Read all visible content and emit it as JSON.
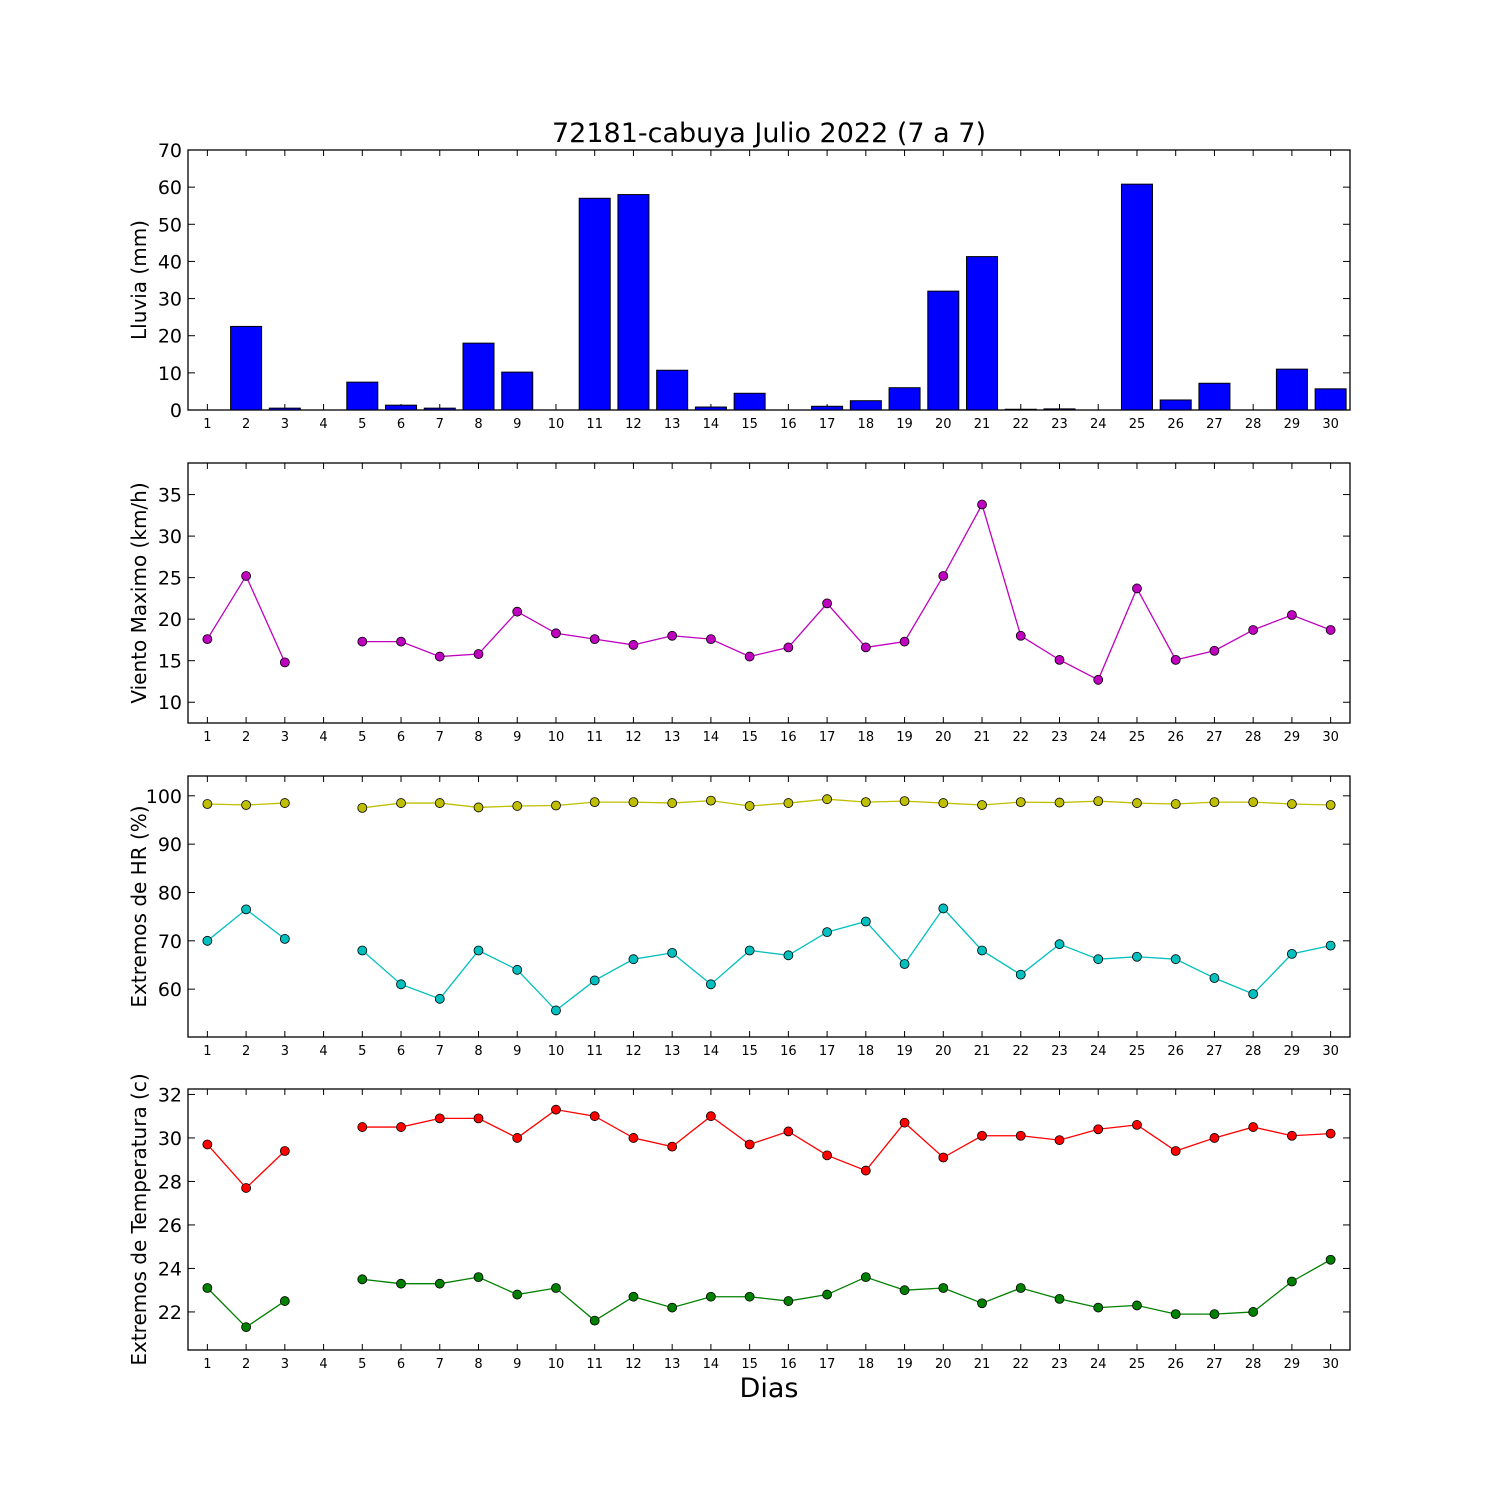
{
  "figure": {
    "title": "72181-cabuya Julio 2022  (7 a 7)",
    "xlabel": "Dias"
  },
  "colors": {
    "rain": "#0000ff",
    "wind": "#bf00bf",
    "hr_max": "#bfbf00",
    "hr_min": "#00bfbf",
    "temp_max": "#ff0000",
    "temp_min": "#008000"
  },
  "chart_data": [
    {
      "type": "bar",
      "ylabel": "Lluvia (mm)",
      "ylim": [
        0,
        70
      ],
      "yticks": [
        0,
        10,
        20,
        30,
        40,
        50,
        60,
        70
      ],
      "categories": [
        "1",
        "2",
        "3",
        "4",
        "5",
        "6",
        "7",
        "8",
        "9",
        "10",
        "11",
        "12",
        "13",
        "14",
        "15",
        "16",
        "17",
        "18",
        "19",
        "20",
        "21",
        "22",
        "23",
        "24",
        "25",
        "26",
        "27",
        "28",
        "29",
        "30"
      ],
      "series": [
        {
          "values": [
            0,
            22.5,
            0.5,
            null,
            7.5,
            1.3,
            0.5,
            18,
            10.2,
            0,
            57,
            58,
            10.7,
            0.8,
            4.5,
            0,
            1,
            2.5,
            6,
            32,
            41.3,
            0.2,
            0.3,
            0,
            60.8,
            2.7,
            7.2,
            0,
            11,
            5.7
          ]
        }
      ]
    },
    {
      "type": "line",
      "ylabel": "Viento Maximo (km/h)",
      "ylim": [
        7.5,
        38.8
      ],
      "yticks": [
        10,
        15,
        20,
        25,
        30,
        35
      ],
      "categories": [
        "1",
        "2",
        "3",
        "4",
        "5",
        "6",
        "7",
        "8",
        "9",
        "10",
        "11",
        "12",
        "13",
        "14",
        "15",
        "16",
        "17",
        "18",
        "19",
        "20",
        "21",
        "22",
        "23",
        "24",
        "25",
        "26",
        "27",
        "28",
        "29",
        "30"
      ],
      "series": [
        {
          "values": [
            17.6,
            25.2,
            14.8,
            null,
            17.3,
            17.3,
            15.5,
            15.8,
            20.9,
            18.3,
            17.6,
            16.9,
            18,
            17.6,
            15.5,
            16.6,
            21.9,
            16.6,
            17.3,
            25.2,
            33.8,
            18,
            15.1,
            12.7,
            23.7,
            15.1,
            16.2,
            18.7,
            20.5,
            18.7
          ]
        }
      ]
    },
    {
      "type": "line",
      "ylabel": "Extremos de HR (%)",
      "ylim": [
        50.1,
        104.1
      ],
      "yticks": [
        60,
        70,
        80,
        90,
        100
      ],
      "categories": [
        "1",
        "2",
        "3",
        "4",
        "5",
        "6",
        "7",
        "8",
        "9",
        "10",
        "11",
        "12",
        "13",
        "14",
        "15",
        "16",
        "17",
        "18",
        "19",
        "20",
        "21",
        "22",
        "23",
        "24",
        "25",
        "26",
        "27",
        "28",
        "29",
        "30"
      ],
      "series": [
        {
          "values": [
            98.3,
            98.1,
            98.5,
            null,
            97.5,
            98.5,
            98.5,
            97.6,
            97.9,
            98,
            98.7,
            98.7,
            98.5,
            99,
            97.9,
            98.5,
            99.3,
            98.7,
            98.9,
            98.5,
            98.1,
            98.7,
            98.6,
            98.9,
            98.5,
            98.3,
            98.7,
            98.7,
            98.3,
            98.1
          ]
        },
        {
          "values": [
            70,
            76.5,
            70.4,
            null,
            68,
            61,
            58,
            68,
            64,
            55.6,
            61.8,
            66.2,
            67.5,
            61,
            68,
            67,
            71.8,
            74,
            65.2,
            76.7,
            68,
            63,
            69.3,
            66.2,
            66.7,
            66.2,
            62.3,
            59,
            67.3,
            69
          ]
        }
      ]
    },
    {
      "type": "line",
      "ylabel": "Extremos de Temperatura (c)",
      "ylim": [
        20.25,
        32.25
      ],
      "yticks": [
        22,
        24,
        26,
        28,
        30,
        32
      ],
      "categories": [
        "1",
        "2",
        "3",
        "4",
        "5",
        "6",
        "7",
        "8",
        "9",
        "10",
        "11",
        "12",
        "13",
        "14",
        "15",
        "16",
        "17",
        "18",
        "19",
        "20",
        "21",
        "22",
        "23",
        "24",
        "25",
        "26",
        "27",
        "28",
        "29",
        "30"
      ],
      "series": [
        {
          "values": [
            29.7,
            27.7,
            29.4,
            null,
            30.5,
            30.5,
            30.9,
            30.9,
            30,
            31.3,
            31,
            30,
            29.6,
            31,
            29.7,
            30.3,
            29.2,
            28.5,
            30.7,
            29.1,
            30.1,
            30.1,
            29.9,
            30.4,
            30.6,
            29.4,
            30,
            30.5,
            30.1,
            30.2
          ]
        },
        {
          "values": [
            23.1,
            21.3,
            22.5,
            null,
            23.5,
            23.3,
            23.3,
            23.6,
            22.8,
            23.1,
            21.6,
            22.7,
            22.2,
            22.7,
            22.7,
            22.5,
            22.8,
            23.6,
            23,
            23.1,
            22.4,
            23.1,
            22.6,
            22.2,
            22.3,
            21.9,
            21.9,
            22,
            23.4,
            24.4
          ]
        }
      ]
    }
  ]
}
